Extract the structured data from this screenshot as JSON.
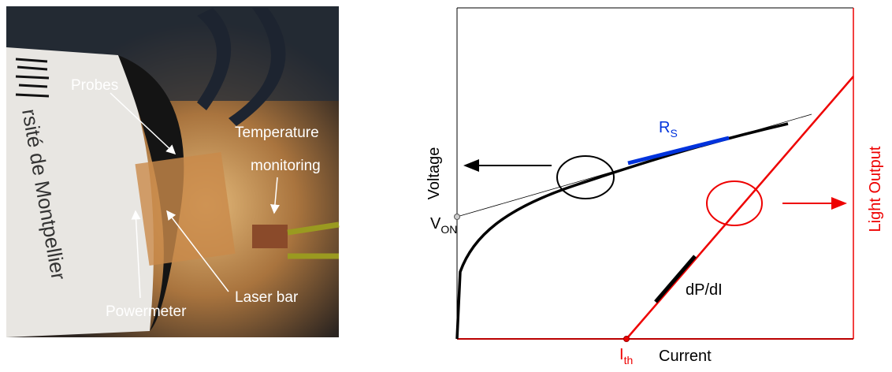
{
  "photo": {
    "cylinder_text": "rsité de Montpellier",
    "labels": {
      "probes": "Probes",
      "temperature": [
        "Temperature",
        "monitoring"
      ],
      "powermeter": "Powermeter",
      "laser_bar": "Laser bar"
    }
  },
  "diagram": {
    "y_label": "Voltage",
    "von": {
      "main": "V",
      "sub": "ON"
    },
    "rs": {
      "main": "R",
      "sub": "S"
    },
    "slope_label": "dP/dI",
    "ith": {
      "main": "I",
      "sub": "th"
    },
    "x_label": "Current",
    "y2_label": "Light Output"
  }
}
